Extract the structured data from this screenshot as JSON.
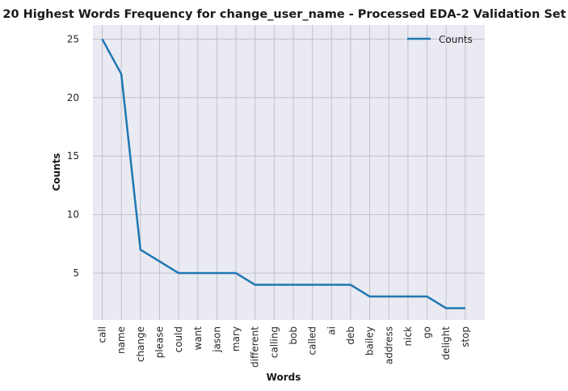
{
  "chart_data": {
    "type": "line",
    "title": "20 Highest Words Frequency for change_user_name - Processed EDA-2 Validation Set",
    "xlabel": "Words",
    "ylabel": "Counts",
    "categories": [
      "call",
      "name",
      "change",
      "please",
      "could",
      "want",
      "jason",
      "mary",
      "different",
      "calling",
      "bob",
      "called",
      "ai",
      "deb",
      "bailey",
      "address",
      "nick",
      "go",
      "delight",
      "stop"
    ],
    "series": [
      {
        "name": "Counts",
        "values": [
          25,
          22,
          7,
          6,
          5,
          5,
          5,
          5,
          4,
          4,
          4,
          4,
          4,
          4,
          3,
          3,
          3,
          3,
          2,
          2
        ],
        "color": "#1f77b4"
      }
    ],
    "ylim": [
      1.0,
      26.2
    ],
    "yticks": [
      5,
      10,
      15,
      20,
      25
    ],
    "ytick_labels": [
      "5",
      "10",
      "15",
      "20",
      "25"
    ],
    "grid": true,
    "legend_position": "top-right",
    "plot_background": "#eaeaf2",
    "grid_color": "#c0c0c8"
  }
}
